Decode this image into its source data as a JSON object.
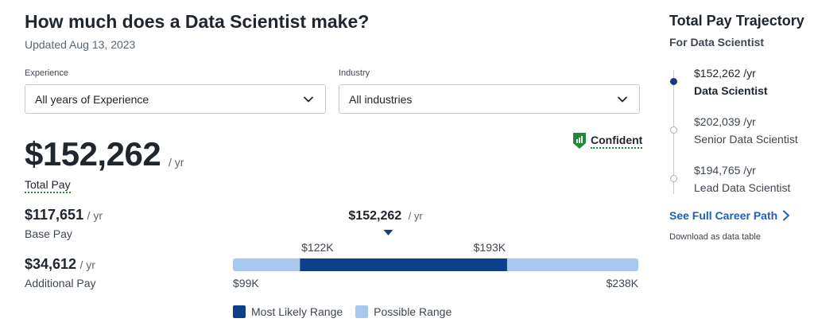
{
  "header": {
    "title": "How much does a Data Scientist make?",
    "updated": "Updated Aug 13, 2023"
  },
  "filters": {
    "experience": {
      "label": "Experience",
      "value": "All years of Experience",
      "icon": "chevron-down-icon"
    },
    "industry": {
      "label": "Industry",
      "value": "All industries",
      "icon": "chevron-down-icon"
    }
  },
  "total_pay": {
    "value": "$152,262",
    "unit": "/ yr",
    "label": "Total Pay"
  },
  "confidence": {
    "label": "Confident",
    "icon": "bar-chart-shield-icon",
    "color": "#1f8a3a"
  },
  "base_pay": {
    "value": "$117,651",
    "unit": "/ yr",
    "label": "Base Pay"
  },
  "additional_pay": {
    "value": "$34,612",
    "unit": "/ yr",
    "label": "Additional Pay"
  },
  "range": {
    "marker_label": "$152,262",
    "marker_unit": "/ yr",
    "low_likely_label": "$122K",
    "high_likely_label": "$193K",
    "min_label": "$99K",
    "max_label": "$238K",
    "colors": {
      "likely": "#0d3f8a",
      "possible": "#a9c8f0"
    }
  },
  "chart_data": {
    "type": "bar",
    "title": "",
    "min": 99000,
    "max": 238000,
    "most_likely_low": 122000,
    "most_likely_high": 193000,
    "median": 152262,
    "legend": [
      "Most Likely Range",
      "Possible Range"
    ]
  },
  "legend": {
    "likely": "Most Likely Range",
    "possible": "Possible Range"
  },
  "trajectory": {
    "title": "Total Pay Trajectory",
    "subtitle": "For Data Scientist",
    "items": [
      {
        "pay": "$152,262 /yr",
        "role": "Data Scientist",
        "active": true
      },
      {
        "pay": "$202,039 /yr",
        "role": "Senior Data Scientist",
        "active": false
      },
      {
        "pay": "$194,765 /yr",
        "role": "Lead Data Scientist",
        "active": false
      }
    ],
    "career_link": "See Full Career Path",
    "download": "Download as data table",
    "accent": "#1861bf"
  }
}
